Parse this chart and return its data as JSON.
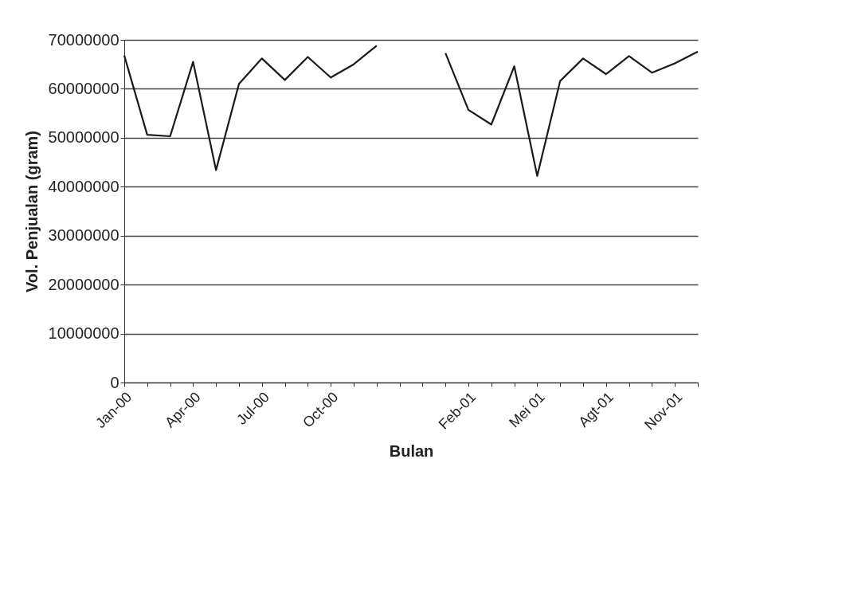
{
  "chart_data": {
    "type": "line",
    "xlabel": "Bulan",
    "ylabel": "Vol. Penjualan (gram)",
    "categories": [
      "Jan-00",
      null,
      null,
      "Apr-00",
      null,
      null,
      "Jul-00",
      null,
      null,
      "Oct-00",
      null,
      null,
      null,
      null,
      null,
      "Feb-01",
      null,
      null,
      "Mei 01",
      null,
      null,
      "Agt-01",
      null,
      null,
      "Nov-01",
      null
    ],
    "series": [
      {
        "color": "#1a1a1a",
        "values": [
          66800000,
          50600000,
          50300000,
          65500000,
          43400000,
          61000000,
          66200000,
          61800000,
          66500000,
          62300000,
          65000000,
          68800000,
          null,
          null,
          67300000,
          55700000,
          52700000,
          64600000,
          42200000,
          61600000,
          66200000,
          63000000,
          66700000,
          63300000,
          65200000,
          67600000
        ]
      }
    ],
    "ylim": [
      0,
      70000000
    ],
    "yticks": [
      0,
      10000000,
      20000000,
      30000000,
      40000000,
      50000000,
      60000000,
      70000000
    ],
    "grid": "y",
    "legend": false,
    "marker": "none",
    "line_style": "solid"
  }
}
